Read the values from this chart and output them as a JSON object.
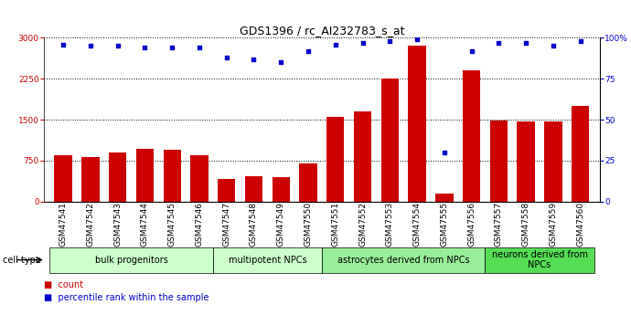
{
  "title": "GDS1396 / rc_AI232783_s_at",
  "samples": [
    "GSM47541",
    "GSM47542",
    "GSM47543",
    "GSM47544",
    "GSM47545",
    "GSM47546",
    "GSM47547",
    "GSM47548",
    "GSM47549",
    "GSM47550",
    "GSM47551",
    "GSM47552",
    "GSM47553",
    "GSM47554",
    "GSM47555",
    "GSM47556",
    "GSM47557",
    "GSM47558",
    "GSM47559",
    "GSM47560"
  ],
  "counts": [
    850,
    820,
    900,
    960,
    950,
    850,
    420,
    460,
    450,
    700,
    1560,
    1650,
    2260,
    2850,
    140,
    2400,
    1490,
    1470,
    1470,
    1750
  ],
  "percentile_ranks": [
    96,
    95,
    95,
    94,
    94,
    94,
    88,
    87,
    85,
    92,
    96,
    97,
    98,
    99,
    30,
    92,
    97,
    97,
    95,
    98
  ],
  "bar_color": "#cc0000",
  "dot_color": "#0000cc",
  "ylim_left": [
    0,
    3000
  ],
  "ylim_right": [
    0,
    100
  ],
  "yticks_left": [
    0,
    750,
    1500,
    2250,
    3000
  ],
  "ytick_labels_left": [
    "0",
    "750",
    "1500",
    "2250",
    "3000"
  ],
  "yticks_right": [
    0,
    25,
    50,
    75,
    100
  ],
  "ytick_labels_right": [
    "0",
    "25",
    "50",
    "75",
    "100%"
  ],
  "cell_types": [
    {
      "label": "bulk progenitors",
      "start": 0,
      "end": 6,
      "color": "#ccffcc"
    },
    {
      "label": "multipotent NPCs",
      "start": 6,
      "end": 10,
      "color": "#ccffcc"
    },
    {
      "label": "astrocytes derived from NPCs",
      "start": 10,
      "end": 16,
      "color": "#99ee99"
    },
    {
      "label": "neurons derived from\nNPCs",
      "start": 16,
      "end": 20,
      "color": "#55dd55"
    }
  ],
  "cell_type_label": "cell type",
  "legend_count_label": "count",
  "legend_pct_label": "percentile rank within the sample",
  "bg_color": "#ffffff",
  "title_fontsize": 9,
  "tick_fontsize": 6.5,
  "ct_fontsize": 7,
  "legend_fontsize": 7
}
